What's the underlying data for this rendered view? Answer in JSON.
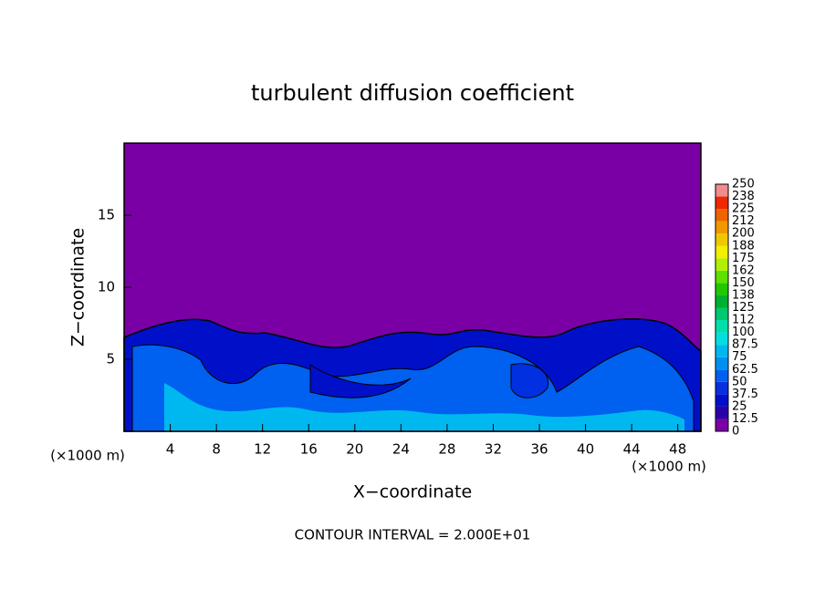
{
  "chart_data": {
    "type": "contour",
    "title": "turbulent diffusion coefficient",
    "x_label": "X−coordinate",
    "y_label": "Z−coordinate",
    "x_unit_label": "(×1000 m)",
    "y_unit_label": "(×1000 m)",
    "footnote": "CONTOUR INTERVAL = 2.000E+01",
    "xlim": [
      0,
      50
    ],
    "ylim": [
      0,
      20
    ],
    "xticks": [
      4,
      8,
      12,
      16,
      20,
      24,
      28,
      32,
      36,
      40,
      44,
      48
    ],
    "yticks": [
      5,
      10,
      15
    ],
    "background_color": "#7a00a6",
    "colorbar": {
      "levels": [
        0,
        12.5,
        25,
        37.5,
        50,
        62.5,
        75,
        87.5,
        100,
        112,
        125,
        138,
        150,
        162,
        175,
        188,
        200,
        212,
        225,
        238,
        250
      ],
      "colors": [
        "#7a00a6",
        "#2a00a8",
        "#0010c8",
        "#0830e0",
        "#0060f0",
        "#0090f0",
        "#00b8f0",
        "#00e0e0",
        "#00e0a8",
        "#00c870",
        "#00b030",
        "#20c800",
        "#60e000",
        "#b0f000",
        "#f0f000",
        "#f0c800",
        "#f09800",
        "#f06400",
        "#f02800",
        "#f08c8c"
      ]
    }
  }
}
